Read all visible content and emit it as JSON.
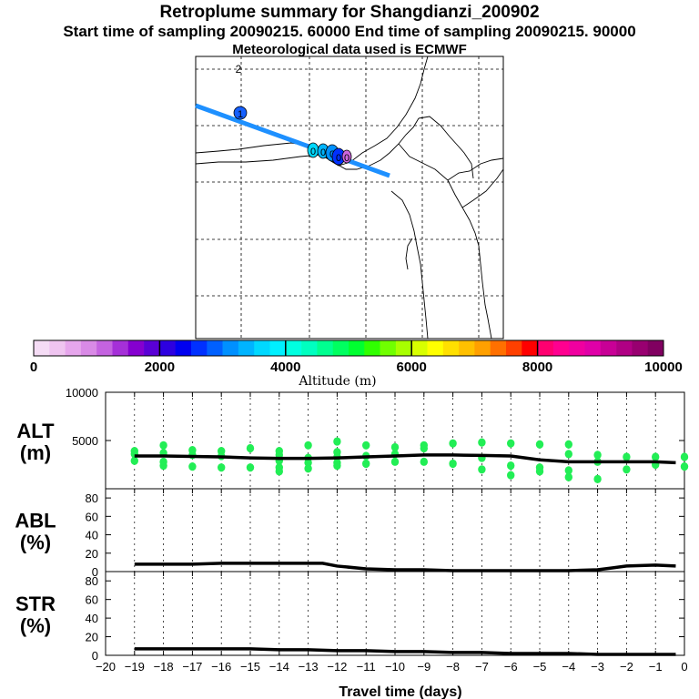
{
  "header": {
    "title": "Retroplume summary for Shangdianzi_200902",
    "sampling_line": "Start time of sampling 20090215. 60000     End time of sampling 20090215. 90000",
    "met_line": "Meteorological data used is ECMWF"
  },
  "colors": {
    "track": "#1e90ff",
    "alt_points": "#22ee55",
    "line": "#000000",
    "grid": "#000000"
  },
  "colorbar": {
    "label": "Altitude (m)",
    "tick_labels": [
      "0",
      "2000",
      "4000",
      "6000",
      "8000",
      "10000"
    ],
    "tick_values": [
      0,
      2000,
      4000,
      6000,
      8000,
      10000
    ],
    "colors": [
      "#f5dcf5",
      "#efc4f0",
      "#e6a6ec",
      "#d98ae6",
      "#c463e0",
      "#a530d8",
      "#8500d0",
      "#5a00d6",
      "#2d00e0",
      "#0000f0",
      "#0030ff",
      "#0060ff",
      "#0090ff",
      "#00b4ff",
      "#00d8ff",
      "#00f0ff",
      "#00ffe0",
      "#00ffc0",
      "#00ff90",
      "#00ff60",
      "#00ff30",
      "#30ff00",
      "#70ff00",
      "#a8ff00",
      "#d8ff00",
      "#ffff00",
      "#ffe000",
      "#ffc000",
      "#ffa000",
      "#ff7000",
      "#ff4000",
      "#ff0000",
      "#ff0070",
      "#ff0090",
      "#f000a0",
      "#e000a8",
      "#c80096",
      "#b00084",
      "#980070",
      "#800060"
    ]
  },
  "map": {
    "plume_points": [
      {
        "label": "1",
        "color": "#1560ff"
      },
      {
        "label": "2",
        "color": "#ffffff"
      },
      {
        "label": "0",
        "color": "#00d8ff"
      },
      {
        "label": "0",
        "color": "#00b4ff"
      },
      {
        "label": "0",
        "color": "#0090ff"
      },
      {
        "label": "0",
        "color": "#0030ff"
      },
      {
        "label": "0",
        "color": "#cc66dd"
      }
    ]
  },
  "chart_data": [
    {
      "type": "scatter",
      "name": "ALT",
      "ylabel": "ALT\n(m)",
      "ylabel_lines": [
        "ALT",
        "(m)"
      ],
      "ylim": [
        0,
        10000
      ],
      "y_ticks": [
        0,
        5000,
        10000
      ],
      "y_tick_labels": [
        "",
        "5000",
        "10000"
      ],
      "xlim": [
        -20,
        0
      ],
      "mean_line": {
        "x": [
          -19,
          -18,
          -17,
          -16,
          -15,
          -14,
          -13,
          -12,
          -11,
          -10,
          -9,
          -8,
          -7,
          -6,
          -5,
          -4,
          -3,
          -2,
          -1,
          -0.3
        ],
        "y": [
          3400,
          3400,
          3350,
          3300,
          3200,
          3150,
          3150,
          3200,
          3300,
          3400,
          3500,
          3500,
          3450,
          3400,
          3000,
          2800,
          2800,
          2800,
          2800,
          2700
        ]
      },
      "points": [
        {
          "x": -19,
          "y": 3900
        },
        {
          "x": -19,
          "y": 3600
        },
        {
          "x": -19,
          "y": 2900
        },
        {
          "x": -18,
          "y": 4500
        },
        {
          "x": -18,
          "y": 3700
        },
        {
          "x": -18,
          "y": 2800
        },
        {
          "x": -18,
          "y": 2400
        },
        {
          "x": -17,
          "y": 4000
        },
        {
          "x": -17,
          "y": 3500
        },
        {
          "x": -17,
          "y": 2300
        },
        {
          "x": -16,
          "y": 3900
        },
        {
          "x": -16,
          "y": 3400
        },
        {
          "x": -16,
          "y": 2200
        },
        {
          "x": -15,
          "y": 4200
        },
        {
          "x": -15,
          "y": 2200
        },
        {
          "x": -14,
          "y": 3900
        },
        {
          "x": -14,
          "y": 3500
        },
        {
          "x": -14,
          "y": 2900
        },
        {
          "x": -14,
          "y": 2200
        },
        {
          "x": -14,
          "y": 1800
        },
        {
          "x": -13,
          "y": 4500
        },
        {
          "x": -13,
          "y": 3200
        },
        {
          "x": -13,
          "y": 2700
        },
        {
          "x": -13,
          "y": 2100
        },
        {
          "x": -12,
          "y": 4900
        },
        {
          "x": -12,
          "y": 3800
        },
        {
          "x": -12,
          "y": 3300
        },
        {
          "x": -12,
          "y": 2700
        },
        {
          "x": -12,
          "y": 2400
        },
        {
          "x": -11,
          "y": 4500
        },
        {
          "x": -11,
          "y": 3400
        },
        {
          "x": -11,
          "y": 2600
        },
        {
          "x": -10,
          "y": 4300
        },
        {
          "x": -10,
          "y": 3600
        },
        {
          "x": -10,
          "y": 2800
        },
        {
          "x": -9,
          "y": 4500
        },
        {
          "x": -9,
          "y": 4200
        },
        {
          "x": -9,
          "y": 2800
        },
        {
          "x": -8,
          "y": 4700
        },
        {
          "x": -8,
          "y": 2600
        },
        {
          "x": -7,
          "y": 4800
        },
        {
          "x": -7,
          "y": 3200
        },
        {
          "x": -7,
          "y": 2000
        },
        {
          "x": -6,
          "y": 4700
        },
        {
          "x": -6,
          "y": 2400
        },
        {
          "x": -6,
          "y": 1400
        },
        {
          "x": -5,
          "y": 4600
        },
        {
          "x": -5,
          "y": 2200
        },
        {
          "x": -5,
          "y": 1800
        },
        {
          "x": -4,
          "y": 4600
        },
        {
          "x": -4,
          "y": 3600
        },
        {
          "x": -4,
          "y": 1900
        },
        {
          "x": -4,
          "y": 1200
        },
        {
          "x": -3,
          "y": 3500
        },
        {
          "x": -3,
          "y": 2800
        },
        {
          "x": -3,
          "y": 1000
        },
        {
          "x": -2,
          "y": 3300
        },
        {
          "x": -2,
          "y": 2000
        },
        {
          "x": -1,
          "y": 3300
        },
        {
          "x": -1,
          "y": 2500
        },
        {
          "x": 0,
          "y": 3300
        },
        {
          "x": 0,
          "y": 2300
        }
      ]
    },
    {
      "type": "line",
      "name": "ABL",
      "ylabel": "ABL\n(%)",
      "ylabel_lines": [
        "ABL",
        "(%)"
      ],
      "ylim": [
        0,
        90
      ],
      "y_ticks": [
        0,
        20,
        40,
        60,
        80
      ],
      "y_tick_labels": [
        "0",
        "20",
        "40",
        "60",
        "80"
      ],
      "xlim": [
        -20,
        0
      ],
      "x": [
        -19,
        -18,
        -17,
        -16,
        -15,
        -14,
        -13,
        -12.5,
        -12,
        -11,
        -10,
        -9,
        -8,
        -7,
        -6,
        -5,
        -4,
        -3,
        -2.5,
        -2,
        -1,
        -0.3
      ],
      "y": [
        8,
        8,
        8,
        9,
        9,
        9,
        9,
        9,
        6,
        3,
        2,
        2,
        1,
        1,
        1,
        1,
        1,
        2,
        4,
        6,
        7,
        6
      ]
    },
    {
      "type": "line",
      "name": "STR",
      "ylabel": "STR\n(%)",
      "ylabel_lines": [
        "STR",
        "(%)"
      ],
      "ylim": [
        0,
        90
      ],
      "y_ticks": [
        0,
        20,
        40,
        60,
        80
      ],
      "y_tick_labels": [
        "0",
        "20",
        "40",
        "60",
        "80"
      ],
      "xlim": [
        -20,
        0
      ],
      "xlabel": "Travel time (days)",
      "x_ticks": [
        -20,
        -19,
        -18,
        -17,
        -16,
        -15,
        -14,
        -13,
        -12,
        -11,
        -10,
        -9,
        -8,
        -7,
        -6,
        -5,
        -4,
        -3,
        -2,
        -1,
        0
      ],
      "x_tick_labels": [
        "−20",
        "−19",
        "−18",
        "−17",
        "−16",
        "−15",
        "−14",
        "−13",
        "−12",
        "−11",
        "−10",
        "−9",
        "−8",
        "−7",
        "−6",
        "−5",
        "−4",
        "−3",
        "−2",
        "−1",
        "0"
      ],
      "x": [
        -19,
        -18,
        -17,
        -16,
        -15,
        -14,
        -13,
        -12,
        -11,
        -10,
        -9,
        -8,
        -7,
        -6,
        -5,
        -4,
        -3,
        -2,
        -1,
        -0.3
      ],
      "y": [
        7,
        7,
        7,
        7,
        7,
        6,
        6,
        5,
        5,
        4,
        4,
        3,
        3,
        2,
        2,
        2,
        1,
        1,
        1,
        1
      ]
    }
  ]
}
